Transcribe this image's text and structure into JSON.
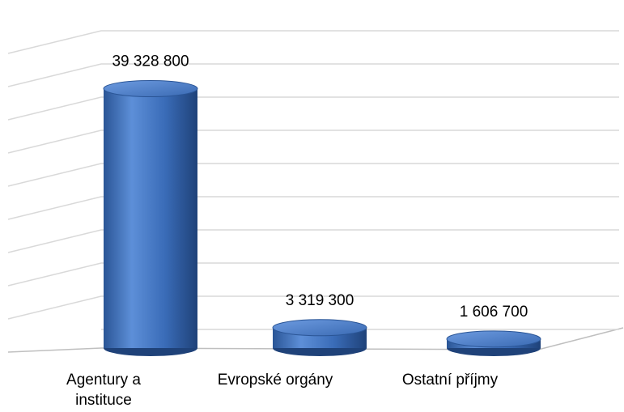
{
  "chart_data": {
    "type": "bar3d",
    "categories": [
      "Agentury a instituce",
      "Evropské orgány",
      "Ostatní příjmy"
    ],
    "values": [
      39328800,
      3319300,
      1606700
    ],
    "value_labels": [
      "39 328 800",
      "3 319 300",
      "1 606 700"
    ],
    "color": "#3f74c0",
    "ylim": [
      0,
      45000000
    ],
    "yticks": [
      0,
      5000000,
      10000000,
      15000000,
      20000000,
      25000000,
      30000000,
      35000000,
      40000000,
      45000000
    ],
    "grid": true
  }
}
